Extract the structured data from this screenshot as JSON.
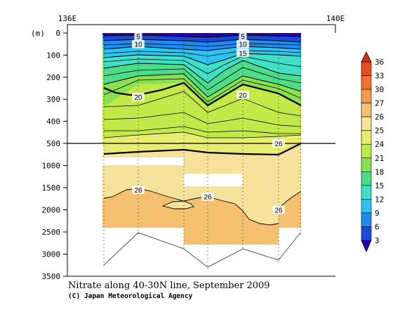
{
  "chart_data": {
    "type": "contour",
    "title": "Nitrate along 40-30N line, September 2009",
    "credit": "(C) Japan Meteorological Agency",
    "ylabel": "(m)",
    "x_ticks": [
      "136E",
      "140E"
    ],
    "y_ticks_upper": [
      0,
      100,
      200,
      300,
      400,
      500
    ],
    "y_ticks_lower": [
      1000,
      1500,
      2000,
      2500,
      3000,
      3500
    ],
    "ylim": [
      0,
      3500
    ],
    "y_break": 500,
    "contour_labels": [
      {
        "value": "5",
        "depth": 15,
        "station": 1
      },
      {
        "value": "10",
        "depth": 50,
        "station": 1
      },
      {
        "value": "5",
        "depth": 15,
        "station": 4
      },
      {
        "value": "10",
        "depth": 50,
        "station": 4
      },
      {
        "value": "15",
        "depth": 90,
        "station": 4
      },
      {
        "value": "20",
        "depth": 290,
        "station": 1
      },
      {
        "value": "20",
        "depth": 280,
        "station": 4
      },
      {
        "value": "26",
        "depth": 500,
        "station": 5
      },
      {
        "value": "26",
        "depth": 1550,
        "station": 1
      },
      {
        "value": "26",
        "depth": 1700,
        "station": 3
      },
      {
        "value": "26",
        "depth": 2000,
        "station": 5
      }
    ],
    "stations_x": [
      148,
      197,
      262,
      296,
      346,
      397,
      428
    ],
    "bottom_depth": [
      3300,
      2550,
      2900,
      3350,
      2900,
      3200,
      2550
    ],
    "colorbar": {
      "levels": [
        3,
        6,
        9,
        12,
        15,
        18,
        21,
        24,
        25,
        26,
        27,
        30,
        33,
        36
      ],
      "colors": [
        "#2a00b0",
        "#1a4bd8",
        "#1e8cf0",
        "#2cc4f0",
        "#40e0c8",
        "#4cdc8a",
        "#8ae050",
        "#c2e84a",
        "#e8ec70",
        "#f6e29a",
        "#f5c070",
        "#f39c4c",
        "#f07232",
        "#e84c1e",
        "#d83010"
      ]
    }
  }
}
